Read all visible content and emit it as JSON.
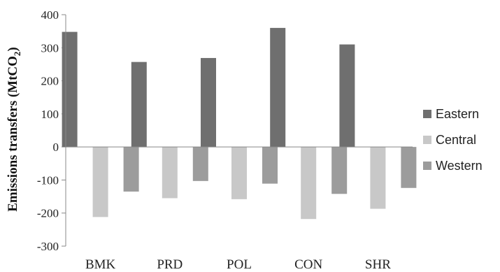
{
  "chart_data": {
    "type": "bar",
    "categories": [
      "BMK",
      "PRD",
      "POL",
      "CON",
      "SHR"
    ],
    "series": [
      {
        "name": "Eastern",
        "color": "#6f6f6f",
        "values": [
          348,
          257,
          269,
          360,
          310
        ]
      },
      {
        "name": "Central",
        "color": "#c8c8c8",
        "values": [
          -212,
          -155,
          -158,
          -218,
          -187
        ]
      },
      {
        "name": "Western",
        "color": "#9c9c9c",
        "values": [
          -135,
          -103,
          -111,
          -142,
          -124
        ]
      }
    ],
    "ylabel_main": "Emissions transfers (MtCO",
    "ylabel_sub": "2",
    "ylabel_close": ")",
    "yticks": [
      "400",
      "300",
      "200",
      "100",
      "0",
      "-100",
      "-200",
      "-300"
    ],
    "ylim": [
      -300,
      400
    ],
    "grid": false,
    "legend_position": "right"
  }
}
